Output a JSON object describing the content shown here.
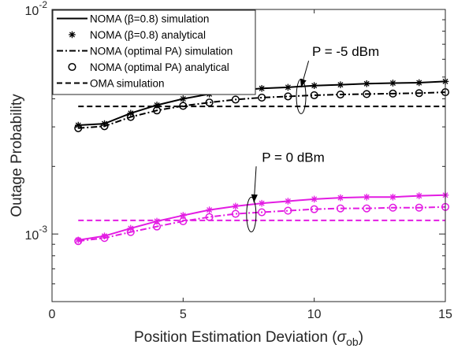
{
  "chart_data": {
    "type": "line",
    "xlabel_main": "Position Estimation Deviation (",
    "xlabel_symbol": "σ",
    "xlabel_sub": "ob",
    "xlabel_close": ")",
    "ylabel": "Outage Probability",
    "xlim": [
      0,
      15
    ],
    "ylim": [
      0.0005,
      0.01
    ],
    "yscale": "log",
    "x_ticks": [
      "0",
      "5",
      "10",
      "15"
    ],
    "y_tick_base": "10",
    "y_ticks_exp": [
      "-3",
      "-2"
    ],
    "grid": false,
    "legend_placement": "top-left",
    "colors": {
      "p_minus5": "#000000",
      "p_0": "#e31ce3"
    },
    "series": [
      {
        "name": "NOMA (β=0.8) simulation",
        "group": "P = -5 dBm",
        "style": "solid",
        "marker": "none",
        "x": [
          1,
          2,
          3,
          4,
          5,
          6,
          7,
          8,
          9,
          10,
          11,
          12,
          13,
          14,
          15
        ],
        "y": [
          0.00305,
          0.0031,
          0.00345,
          0.00375,
          0.004,
          0.0042,
          0.00435,
          0.00445,
          0.0045,
          0.00458,
          0.00462,
          0.00467,
          0.0047,
          0.00472,
          0.00478
        ]
      },
      {
        "name": "NOMA (β=0.8) analytical",
        "group": "P = -5 dBm",
        "style": "none",
        "marker": "asterisk",
        "x": [
          1,
          2,
          3,
          4,
          5,
          6,
          7,
          8,
          9,
          10,
          11,
          12,
          13,
          14,
          15
        ],
        "y": [
          0.00305,
          0.0031,
          0.00345,
          0.00375,
          0.004,
          0.0042,
          0.00435,
          0.00445,
          0.0045,
          0.00458,
          0.00462,
          0.00467,
          0.0047,
          0.00472,
          0.00478
        ]
      },
      {
        "name": "NOMA (optimal PA) simulation",
        "group": "P = -5 dBm",
        "style": "dashdot",
        "marker": "none",
        "x": [
          1,
          2,
          3,
          4,
          5,
          6,
          7,
          8,
          9,
          10,
          11,
          12,
          13,
          14,
          15
        ],
        "y": [
          0.00296,
          0.00302,
          0.00332,
          0.00355,
          0.00372,
          0.00385,
          0.00397,
          0.00405,
          0.0041,
          0.00415,
          0.00418,
          0.0042,
          0.00422,
          0.00424,
          0.00428
        ]
      },
      {
        "name": "NOMA (optimal PA) analytical",
        "group": "P = -5 dBm",
        "style": "none",
        "marker": "circle",
        "x": [
          1,
          2,
          3,
          4,
          5,
          6,
          7,
          8,
          9,
          10,
          11,
          12,
          13,
          14,
          15
        ],
        "y": [
          0.00296,
          0.00302,
          0.00332,
          0.00355,
          0.00372,
          0.00385,
          0.00397,
          0.00405,
          0.0041,
          0.00415,
          0.00418,
          0.0042,
          0.00422,
          0.00424,
          0.00428
        ]
      },
      {
        "name": "OMA simulation",
        "group": "P = -5 dBm",
        "style": "dashed",
        "marker": "none",
        "x": [
          1,
          15
        ],
        "y": [
          0.0037,
          0.0037
        ]
      },
      {
        "group": "P = 0 dBm",
        "style": "solid",
        "marker": "none",
        "x": [
          1,
          2,
          3,
          4,
          5,
          6,
          7,
          8,
          9,
          10,
          11,
          12,
          13,
          14,
          15
        ],
        "y": [
          0.00094,
          0.00098,
          0.00106,
          0.00114,
          0.00121,
          0.00128,
          0.00133,
          0.00137,
          0.0014,
          0.00143,
          0.00145,
          0.00146,
          0.00146,
          0.00148,
          0.00149
        ]
      },
      {
        "group": "P = 0 dBm",
        "style": "none",
        "marker": "asterisk",
        "x": [
          1,
          2,
          3,
          4,
          5,
          6,
          7,
          8,
          9,
          10,
          11,
          12,
          13,
          14,
          15
        ],
        "y": [
          0.00094,
          0.00098,
          0.00106,
          0.00114,
          0.00121,
          0.00128,
          0.00133,
          0.00137,
          0.0014,
          0.00143,
          0.00145,
          0.00146,
          0.00146,
          0.00148,
          0.00149
        ]
      },
      {
        "group": "P = 0 dBm",
        "style": "dashdot",
        "marker": "none",
        "x": [
          1,
          2,
          3,
          4,
          5,
          6,
          7,
          8,
          9,
          10,
          11,
          12,
          13,
          14,
          15
        ],
        "y": [
          0.00093,
          0.00096,
          0.00102,
          0.00108,
          0.00114,
          0.00119,
          0.00123,
          0.00125,
          0.00127,
          0.00129,
          0.0013,
          0.0013,
          0.00131,
          0.00131,
          0.00132
        ]
      },
      {
        "group": "P = 0 dBm",
        "style": "none",
        "marker": "circle",
        "x": [
          1,
          2,
          3,
          4,
          5,
          6,
          7,
          8,
          9,
          10,
          11,
          12,
          13,
          14,
          15
        ],
        "y": [
          0.00093,
          0.00096,
          0.00102,
          0.00108,
          0.00114,
          0.00119,
          0.00123,
          0.00125,
          0.00127,
          0.00129,
          0.0013,
          0.0013,
          0.00131,
          0.00131,
          0.00132
        ]
      },
      {
        "group": "P = 0 dBm",
        "style": "dashed",
        "marker": "none",
        "x": [
          1,
          15
        ],
        "y": [
          0.00115,
          0.00115
        ]
      }
    ],
    "annotations": [
      {
        "text": "P = -5 dBm",
        "text_at": [
          11.2,
          0.0062
        ],
        "arrow_to": [
          9.5,
          0.0045
        ],
        "ellipse_at": [
          9.5,
          0.0041
        ]
      },
      {
        "text": "P = 0 dBm",
        "text_at": [
          9.2,
          0.0021
        ],
        "arrow_to": [
          7.7,
          0.00138
        ],
        "ellipse_at": [
          7.6,
          0.00122
        ]
      }
    ],
    "legend": {
      "entries": [
        {
          "label": "NOMA (β=0.8) simulation",
          "style": "solid",
          "marker": "none"
        },
        {
          "label": "NOMA (β=0.8) analytical",
          "style": "none",
          "marker": "asterisk"
        },
        {
          "label": "NOMA (optimal PA) simulation",
          "style": "dashdot",
          "marker": "none"
        },
        {
          "label": "NOMA (optimal PA) analytical",
          "style": "none",
          "marker": "circle"
        },
        {
          "label": "OMA simulation",
          "style": "dashed",
          "marker": "none"
        }
      ]
    }
  }
}
